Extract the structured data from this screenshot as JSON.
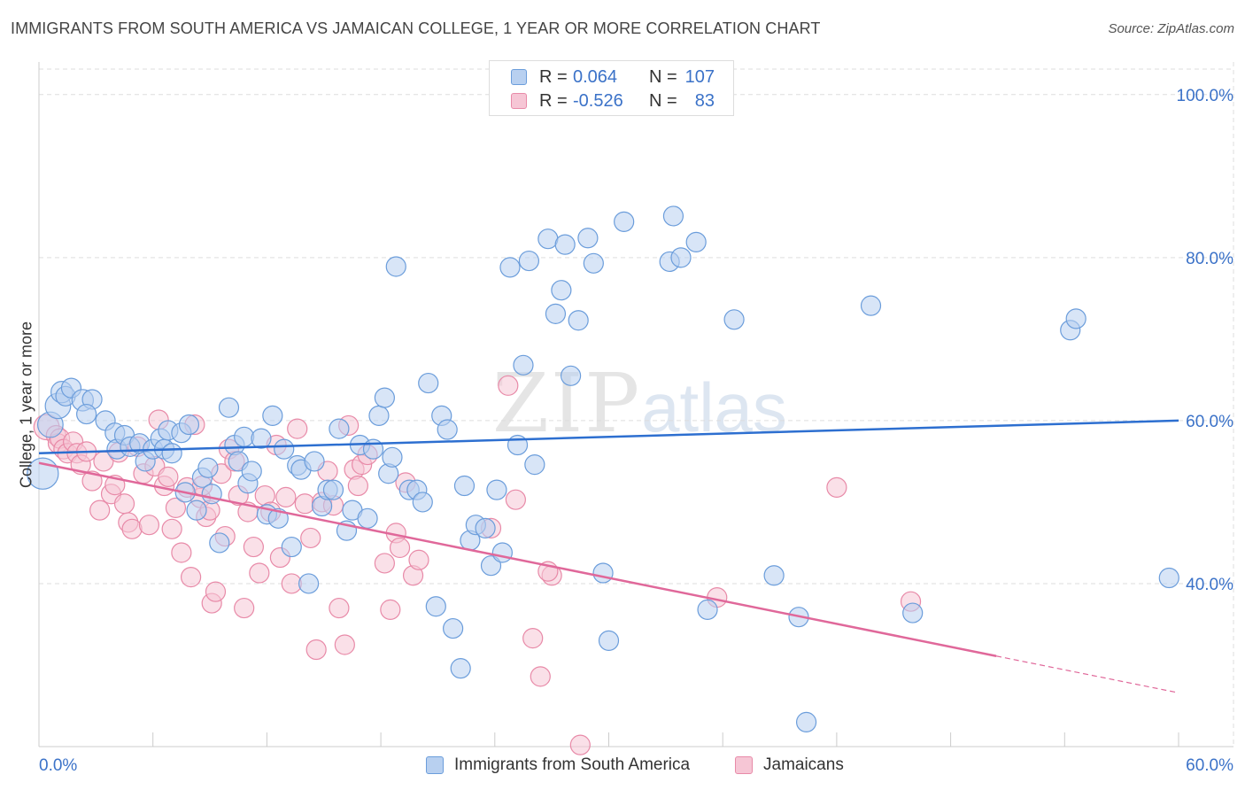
{
  "title": "IMMIGRANTS FROM SOUTH AMERICA VS JAMAICAN COLLEGE, 1 YEAR OR MORE CORRELATION CHART",
  "source": "Source: ZipAtlas.com",
  "watermark": {
    "zip": "ZIP",
    "atlas": "atlas"
  },
  "legend_top": {
    "rows": [
      {
        "r_label": "R =",
        "r_value": "0.064",
        "n_label": "N =",
        "n_value": "107"
      },
      {
        "r_label": "R =",
        "r_value": "-0.526",
        "n_label": "N =",
        "n_value": "83"
      }
    ]
  },
  "legend_bottom": {
    "items": [
      "Immigrants from South America",
      "Jamaicans"
    ]
  },
  "colors": {
    "blue_fill": "#b8d0f0",
    "blue_stroke": "#6b9ddb",
    "blue_line": "#2d6fd0",
    "pink_fill": "#f6c6d5",
    "pink_stroke": "#e88aa8",
    "pink_line": "#e0689a",
    "grid": "#dddddd",
    "tick_label": "#3b72c8"
  },
  "chart_data": {
    "type": "scatter",
    "title": "IMMIGRANTS FROM SOUTH AMERICA VS JAMAICAN COLLEGE, 1 YEAR OR MORE CORRELATION CHART",
    "xlabel": "",
    "ylabel": "College, 1 year or more",
    "xlim": [
      0,
      60
    ],
    "ylim": [
      20,
      104
    ],
    "x_tick_labels": [
      "0.0%",
      "60.0%"
    ],
    "y_ticks": [
      40,
      60,
      80,
      100
    ],
    "y_tick_labels": [
      "40.0%",
      "60.0%",
      "80.0%",
      "100.0%"
    ],
    "series": [
      {
        "name": "Immigrants from South America",
        "R": 0.064,
        "N": 107,
        "trend": {
          "x0": 0,
          "y0": 56.0,
          "x1": 60,
          "y1": 60.0
        },
        "points": [
          [
            0.2,
            53.5,
            1.6
          ],
          [
            0.6,
            59.5,
            1.3
          ],
          [
            1.0,
            61.8,
            1.3
          ],
          [
            1.2,
            63.5,
            1.1
          ],
          [
            1.4,
            63.0,
            1.0
          ],
          [
            1.7,
            64.0,
            1.0
          ],
          [
            2.3,
            62.5,
            1.1
          ],
          [
            2.8,
            62.6,
            1.0
          ],
          [
            2.5,
            60.8,
            1.0
          ],
          [
            3.5,
            60.0,
            1.0
          ],
          [
            4.0,
            58.5,
            1.0
          ],
          [
            4.1,
            56.5,
            1.0
          ],
          [
            4.5,
            58.2,
            1.0
          ],
          [
            4.8,
            56.8,
            1.0
          ],
          [
            5.3,
            57.2,
            1.0
          ],
          [
            5.6,
            55.0,
            1.0
          ],
          [
            6.0,
            56.5,
            1.0
          ],
          [
            6.4,
            57.8,
            1.0
          ],
          [
            6.6,
            56.5,
            1.0
          ],
          [
            6.8,
            58.8,
            1.0
          ],
          [
            7.0,
            56.0,
            1.0
          ],
          [
            7.5,
            58.5,
            1.0
          ],
          [
            7.7,
            51.2,
            1.0
          ],
          [
            7.9,
            59.5,
            1.0
          ],
          [
            8.3,
            49.0,
            1.0
          ],
          [
            8.6,
            53.0,
            1.0
          ],
          [
            8.9,
            54.2,
            1.0
          ],
          [
            9.1,
            51.0,
            1.0
          ],
          [
            9.5,
            45.0,
            1.0
          ],
          [
            10.0,
            61.6,
            1.0
          ],
          [
            10.3,
            57.0,
            1.0
          ],
          [
            10.5,
            55.0,
            1.0
          ],
          [
            10.8,
            58.0,
            1.0
          ],
          [
            11.0,
            52.3,
            1.0
          ],
          [
            11.2,
            53.8,
            1.0
          ],
          [
            11.7,
            57.8,
            1.0
          ],
          [
            12.0,
            48.5,
            1.0
          ],
          [
            12.3,
            60.6,
            1.0
          ],
          [
            12.6,
            48.0,
            1.0
          ],
          [
            12.9,
            56.5,
            1.0
          ],
          [
            13.3,
            44.5,
            1.0
          ],
          [
            13.6,
            54.5,
            1.0
          ],
          [
            13.8,
            54.0,
            1.0
          ],
          [
            14.2,
            40.0,
            1.0
          ],
          [
            14.5,
            55.0,
            1.0
          ],
          [
            14.9,
            49.5,
            1.0
          ],
          [
            15.2,
            51.5,
            1.0
          ],
          [
            15.5,
            51.5,
            1.0
          ],
          [
            15.8,
            59.0,
            1.0
          ],
          [
            16.2,
            46.5,
            1.0
          ],
          [
            16.5,
            49.0,
            1.0
          ],
          [
            16.9,
            57.0,
            1.0
          ],
          [
            17.3,
            48.0,
            1.0
          ],
          [
            17.6,
            56.5,
            1.0
          ],
          [
            17.9,
            60.6,
            1.0
          ],
          [
            18.2,
            62.8,
            1.0
          ],
          [
            18.4,
            53.5,
            1.0
          ],
          [
            18.6,
            55.5,
            1.0
          ],
          [
            18.8,
            78.9,
            1.0
          ],
          [
            19.5,
            51.5,
            1.0
          ],
          [
            19.9,
            51.5,
            1.0
          ],
          [
            20.2,
            50.0,
            1.0
          ],
          [
            20.5,
            64.6,
            1.0
          ],
          [
            20.9,
            37.2,
            1.0
          ],
          [
            21.2,
            60.6,
            1.0
          ],
          [
            21.5,
            58.9,
            1.0
          ],
          [
            21.8,
            34.5,
            1.0
          ],
          [
            22.2,
            29.6,
            1.0
          ],
          [
            22.4,
            52.0,
            1.0
          ],
          [
            22.7,
            45.3,
            1.0
          ],
          [
            23.0,
            47.2,
            1.0
          ],
          [
            23.5,
            46.8,
            1.0
          ],
          [
            23.8,
            42.2,
            1.0
          ],
          [
            24.1,
            51.5,
            1.0
          ],
          [
            24.4,
            43.8,
            1.0
          ],
          [
            24.8,
            78.8,
            1.0
          ],
          [
            25.2,
            57.0,
            1.0
          ],
          [
            25.5,
            66.8,
            1.0
          ],
          [
            25.8,
            79.6,
            1.0
          ],
          [
            26.1,
            54.6,
            1.0
          ],
          [
            26.8,
            82.3,
            1.0
          ],
          [
            27.2,
            73.1,
            1.0
          ],
          [
            27.5,
            76.0,
            1.0
          ],
          [
            27.7,
            81.6,
            1.0
          ],
          [
            28.0,
            65.5,
            1.0
          ],
          [
            28.4,
            72.3,
            1.0
          ],
          [
            28.9,
            82.4,
            1.0
          ],
          [
            29.2,
            79.3,
            1.0
          ],
          [
            29.7,
            41.3,
            1.0
          ],
          [
            30.0,
            33.0,
            1.0
          ],
          [
            30.8,
            84.4,
            1.0
          ],
          [
            33.2,
            79.5,
            1.0
          ],
          [
            33.4,
            85.1,
            1.0
          ],
          [
            33.8,
            80.0,
            1.0
          ],
          [
            34.6,
            81.9,
            1.0
          ],
          [
            35.2,
            36.8,
            1.0
          ],
          [
            36.6,
            72.4,
            1.0
          ],
          [
            38.7,
            41.0,
            1.0
          ],
          [
            40.0,
            35.9,
            1.0
          ],
          [
            40.4,
            23.0,
            1.0
          ],
          [
            43.8,
            74.1,
            1.0
          ],
          [
            46.0,
            36.4,
            1.0
          ],
          [
            54.3,
            71.1,
            1.0
          ],
          [
            54.6,
            72.5,
            1.0
          ],
          [
            59.5,
            40.7,
            1.0
          ]
        ]
      },
      {
        "name": "Jamaicans",
        "R": -0.526,
        "N": 83,
        "trend": {
          "x0": 0,
          "y0": 54.8,
          "x1": 60,
          "y1": 26.6,
          "solid_until_x": 50.4
        },
        "points": [
          [
            0.4,
            59.2,
            1.3
          ],
          [
            0.9,
            58.2,
            1.0
          ],
          [
            1.0,
            57.2,
            1.0
          ],
          [
            1.1,
            57.8,
            1.0
          ],
          [
            1.3,
            56.5,
            1.0
          ],
          [
            1.5,
            56.0,
            1.0
          ],
          [
            1.8,
            57.4,
            1.0
          ],
          [
            2.0,
            56.0,
            1.0
          ],
          [
            2.2,
            54.6,
            1.0
          ],
          [
            2.5,
            56.2,
            1.0
          ],
          [
            2.8,
            52.6,
            1.0
          ],
          [
            3.2,
            49.0,
            1.0
          ],
          [
            3.4,
            55.0,
            1.0
          ],
          [
            3.8,
            51.0,
            1.0
          ],
          [
            4.0,
            52.1,
            1.0
          ],
          [
            4.2,
            56.1,
            1.0
          ],
          [
            4.5,
            49.8,
            1.0
          ],
          [
            4.7,
            47.5,
            1.0
          ],
          [
            4.9,
            46.7,
            1.0
          ],
          [
            5.2,
            56.8,
            1.0
          ],
          [
            5.5,
            53.5,
            1.0
          ],
          [
            5.8,
            47.2,
            1.0
          ],
          [
            6.1,
            54.4,
            1.0
          ],
          [
            6.3,
            60.1,
            1.0
          ],
          [
            6.6,
            52.0,
            1.0
          ],
          [
            6.8,
            53.1,
            1.0
          ],
          [
            7.0,
            46.7,
            1.0
          ],
          [
            7.2,
            49.3,
            1.0
          ],
          [
            7.5,
            43.8,
            1.0
          ],
          [
            7.8,
            51.8,
            1.0
          ],
          [
            8.0,
            40.8,
            1.0
          ],
          [
            8.2,
            59.5,
            1.0
          ],
          [
            8.5,
            50.5,
            1.0
          ],
          [
            8.6,
            52.0,
            1.0
          ],
          [
            8.8,
            48.2,
            1.0
          ],
          [
            9.0,
            49.0,
            1.0
          ],
          [
            9.1,
            37.6,
            1.0
          ],
          [
            9.3,
            39.0,
            1.0
          ],
          [
            9.6,
            53.5,
            1.0
          ],
          [
            9.8,
            45.8,
            1.0
          ],
          [
            10.0,
            56.5,
            1.0
          ],
          [
            10.3,
            55.0,
            1.0
          ],
          [
            10.5,
            50.8,
            1.0
          ],
          [
            10.8,
            37.0,
            1.0
          ],
          [
            11.0,
            48.8,
            1.0
          ],
          [
            11.3,
            44.5,
            1.0
          ],
          [
            11.6,
            41.3,
            1.0
          ],
          [
            11.9,
            50.8,
            1.0
          ],
          [
            12.2,
            48.8,
            1.0
          ],
          [
            12.5,
            57.0,
            1.0
          ],
          [
            12.7,
            43.2,
            1.0
          ],
          [
            13.0,
            50.6,
            1.0
          ],
          [
            13.3,
            40.0,
            1.0
          ],
          [
            13.6,
            59.0,
            1.0
          ],
          [
            14.0,
            49.8,
            1.0
          ],
          [
            14.3,
            45.6,
            1.0
          ],
          [
            14.6,
            31.9,
            1.0
          ],
          [
            14.9,
            50.0,
            1.0
          ],
          [
            15.2,
            53.8,
            1.0
          ],
          [
            15.5,
            49.6,
            1.0
          ],
          [
            15.8,
            37.0,
            1.0
          ],
          [
            16.1,
            32.5,
            1.0
          ],
          [
            16.3,
            59.4,
            1.0
          ],
          [
            16.6,
            54.0,
            1.0
          ],
          [
            16.8,
            52.0,
            1.0
          ],
          [
            17.0,
            54.6,
            1.0
          ],
          [
            17.3,
            55.8,
            1.0
          ],
          [
            18.2,
            42.5,
            1.0
          ],
          [
            18.5,
            36.8,
            1.0
          ],
          [
            18.8,
            46.2,
            1.0
          ],
          [
            19.0,
            44.4,
            1.0
          ],
          [
            19.3,
            52.4,
            1.0
          ],
          [
            19.7,
            41.0,
            1.0
          ],
          [
            20.0,
            42.9,
            1.0
          ],
          [
            23.8,
            46.8,
            1.0
          ],
          [
            24.7,
            64.3,
            1.0
          ],
          [
            25.1,
            50.3,
            1.0
          ],
          [
            26.0,
            33.3,
            1.0
          ],
          [
            26.4,
            28.6,
            1.0
          ],
          [
            27.0,
            41.0,
            1.0
          ],
          [
            28.5,
            20.2,
            1.0
          ],
          [
            35.7,
            38.3,
            1.0
          ],
          [
            42.0,
            51.8,
            1.0
          ],
          [
            45.9,
            37.8,
            1.0
          ],
          [
            26.8,
            41.5,
            1.0
          ]
        ]
      }
    ]
  }
}
